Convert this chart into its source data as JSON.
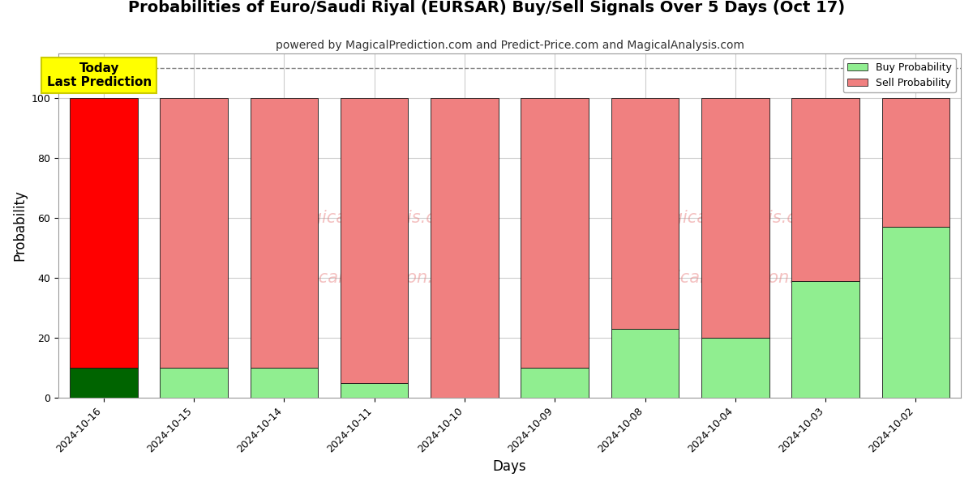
{
  "title": "Probabilities of Euro/Saudi Riyal (EURSAR) Buy/Sell Signals Over 5 Days (Oct 17)",
  "subtitle": "powered by MagicalPrediction.com and Predict-Price.com and MagicalAnalysis.com",
  "xlabel": "Days",
  "ylabel": "Probability",
  "categories": [
    "2024-10-16",
    "2024-10-15",
    "2024-10-14",
    "2024-10-11",
    "2024-10-10",
    "2024-10-09",
    "2024-10-08",
    "2024-10-04",
    "2024-10-03",
    "2024-10-02"
  ],
  "buy_values": [
    10,
    10,
    10,
    5,
    0,
    10,
    23,
    20,
    39,
    57
  ],
  "sell_values": [
    90,
    90,
    90,
    95,
    100,
    90,
    77,
    80,
    61,
    43
  ],
  "first_bar_buy_color": "#006400",
  "first_bar_sell_color": "#ff0000",
  "buy_color": "#90EE90",
  "sell_color": "#F08080",
  "today_box_color": "#ffff00",
  "today_box_text": "Today\nLast Prediction",
  "dashed_line_y": 110,
  "ylim": [
    0,
    115
  ],
  "yticks": [
    0,
    20,
    40,
    60,
    80,
    100
  ],
  "legend_buy_label": "Buy Probability",
  "legend_sell_label": "Sell Probability",
  "background_color": "#ffffff",
  "grid_color": "#cccccc",
  "bar_edge_color": "#111111",
  "bar_width": 0.75,
  "figsize": [
    12,
    6
  ],
  "dpi": 100,
  "title_fontsize": 14,
  "subtitle_fontsize": 10,
  "axis_label_fontsize": 12,
  "tick_fontsize": 9,
  "legend_fontsize": 9,
  "today_fontsize": 11
}
